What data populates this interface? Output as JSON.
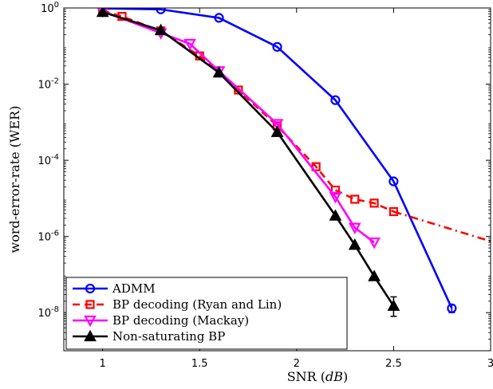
{
  "chart_data": {
    "type": "line",
    "title": "",
    "xlabel": "SNR (dB)",
    "ylabel": "word-error-rate (WER)",
    "xlim": [
      0.8,
      3.0
    ],
    "ylim": [
      1e-09,
      1
    ],
    "yscale": "log",
    "grid": false,
    "legend_position": "bottom-left",
    "x_ticks": [
      1,
      1.5,
      2,
      2.5,
      3
    ],
    "x_tick_labels": [
      "1",
      "1.5",
      "2",
      "2.5",
      "3"
    ],
    "y_ticks": [
      1e-08,
      1e-06,
      0.0001,
      0.01,
      1
    ],
    "y_tick_labels": [
      {
        "base": "10",
        "exp": "-8"
      },
      {
        "base": "10",
        "exp": "-6"
      },
      {
        "base": "10",
        "exp": "-4"
      },
      {
        "base": "10",
        "exp": "-2"
      },
      {
        "base": "10",
        "exp": "0"
      }
    ],
    "series": [
      {
        "name": "ADMM",
        "color": "#0000ff",
        "line_style": "solid",
        "marker": "circle",
        "x": [
          1.0,
          1.3,
          1.6,
          1.9,
          2.2,
          2.5,
          2.8
        ],
        "y": [
          0.97,
          0.92,
          0.55,
          0.095,
          0.0038,
          2.8e-05,
          1.3e-08
        ]
      },
      {
        "name": "BP decoding (Ryan and Lin)",
        "color": "#ff0000",
        "line_style": "dashed",
        "marker": "square",
        "x": [
          1.0,
          1.1,
          1.3,
          1.5,
          1.7,
          1.9,
          2.1,
          2.2,
          2.3,
          2.4,
          2.5
        ],
        "y": [
          0.85,
          0.6,
          0.25,
          0.055,
          0.007,
          0.0008,
          6.8e-05,
          1.65e-05,
          9.5e-06,
          7.5e-06,
          4.5e-06
        ]
      },
      {
        "name": "BP decoding (Ryan and Lin) extrapolation",
        "color": "#ff0000",
        "line_style": "dashdot",
        "marker": "none",
        "x": [
          2.5,
          3.0
        ],
        "y": [
          4.5e-06,
          7.5e-07
        ]
      },
      {
        "name": "BP decoding (Mackay)",
        "color": "#ff00ff",
        "line_style": "solid",
        "marker": "triangle-down",
        "x": [
          1.0,
          1.3,
          1.45,
          1.6,
          1.9,
          2.2,
          2.3,
          2.4
        ],
        "y": [
          0.82,
          0.22,
          0.115,
          0.022,
          0.0009,
          1.1e-05,
          1.7e-06,
          7e-07
        ]
      },
      {
        "name": "Non-saturating BP",
        "color": "#000000",
        "line_style": "solid",
        "marker": "triangle-up",
        "x": [
          1.0,
          1.3,
          1.6,
          1.9,
          2.2,
          2.3,
          2.4,
          2.5
        ],
        "y": [
          0.78,
          0.26,
          0.02,
          0.00055,
          3.5e-06,
          6e-07,
          9e-08,
          1.5e-08
        ]
      }
    ]
  }
}
